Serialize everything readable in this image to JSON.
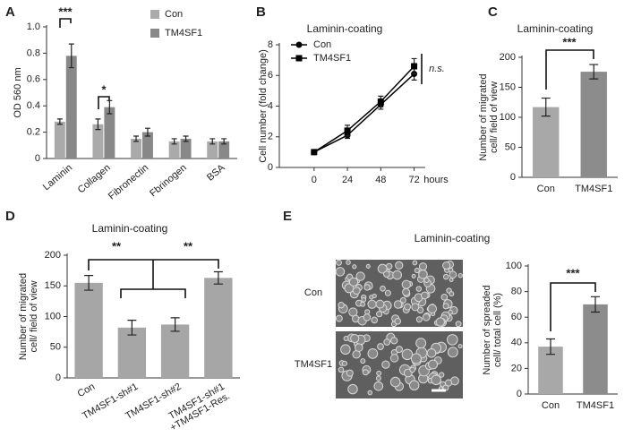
{
  "chart_data": [
    {
      "type": "bar",
      "panel": "A",
      "ylabel": "OD 560 nm",
      "categories": [
        "Laminin",
        "Collagen",
        "Fibronectin",
        "Fbrinogen",
        "BSA"
      ],
      "series": [
        {
          "name": "Con",
          "color": "#aaaaaa",
          "values": [
            0.28,
            0.26,
            0.15,
            0.13,
            0.13
          ],
          "errors": [
            0.02,
            0.04,
            0.02,
            0.02,
            0.02
          ]
        },
        {
          "name": "TM4SF1",
          "color": "#888888",
          "values": [
            0.78,
            0.39,
            0.2,
            0.15,
            0.13
          ],
          "errors": [
            0.09,
            0.05,
            0.03,
            0.02,
            0.02
          ]
        }
      ],
      "ylim": [
        0,
        1
      ],
      "yticks": [
        0,
        0.2,
        0.4,
        0.6,
        0.8,
        {
          "value": 1,
          "label": "1.0"
        }
      ],
      "annotations": [
        "***",
        "*"
      ]
    },
    {
      "type": "line",
      "panel": "B",
      "title": "Laminin-coating",
      "ylabel": "Cell number (fold change)",
      "xlabel": "hours",
      "x": [
        0,
        24,
        48,
        72
      ],
      "series": [
        {
          "name": "Con",
          "color": "#000000",
          "marker": "circle",
          "values": [
            1,
            2.1,
            4.1,
            6.1
          ],
          "errors": [
            0.05,
            0.2,
            0.3,
            0.4
          ]
        },
        {
          "name": "TM4SF1",
          "color": "#000000",
          "marker": "square",
          "values": [
            1,
            2.4,
            4.3,
            6.6
          ],
          "errors": [
            0.05,
            0.35,
            0.35,
            0.5
          ]
        }
      ],
      "xlim": [
        -25,
        80
      ],
      "xticks": [
        0,
        24,
        48,
        72
      ],
      "ylim": [
        0,
        8
      ],
      "yticks": [
        0,
        2,
        4,
        6,
        8
      ],
      "annotations": [
        "n.s."
      ]
    },
    {
      "type": "bar",
      "panel": "C",
      "title": "Laminin-coating",
      "ylabel": "Number of migrated\ncell/ field of view",
      "categories": [
        "Con",
        "TM4SF1"
      ],
      "values": [
        117,
        176
      ],
      "errors": [
        15,
        12
      ],
      "colors": [
        "#a8a8a8",
        "#8c8c8c"
      ],
      "ylim": [
        0,
        200
      ],
      "yticks": [
        0,
        50,
        100,
        150,
        200
      ],
      "annotations": [
        "***"
      ]
    },
    {
      "type": "bar",
      "panel": "D",
      "title": "Laminin-coating",
      "ylabel": "Number of migrated\ncell/ field of view",
      "categories": [
        "Con",
        "TM4SF1-sh#1",
        "TM4SF1-sh#2",
        "TM4SF1-sh#1\n+TM4SF1-Res."
      ],
      "values": [
        155,
        82,
        87,
        163
      ],
      "errors": [
        12,
        12,
        11,
        10
      ],
      "colors": [
        "#a6a6a6",
        "#a6a6a6",
        "#a6a6a6",
        "#a6a6a6"
      ],
      "ylim": [
        0,
        200
      ],
      "yticks": [
        0,
        50,
        100,
        150,
        200
      ],
      "annotations": [
        "**",
        "**"
      ]
    },
    {
      "type": "bar",
      "panel": "E",
      "title": "Laminin-coating",
      "ylabel": "Number of spreaded\ncell/ total cell (%)",
      "image_labels": [
        "Con",
        "TM4SF1"
      ],
      "categories": [
        "Con",
        "TM4SF1"
      ],
      "values": [
        37,
        70
      ],
      "errors": [
        6,
        6
      ],
      "colors": [
        "#a8a8a8",
        "#8c8c8c"
      ],
      "ylim": [
        0,
        100
      ],
      "yticks": [
        0,
        20,
        40,
        60,
        80,
        100
      ],
      "annotations": [
        "***"
      ]
    }
  ]
}
